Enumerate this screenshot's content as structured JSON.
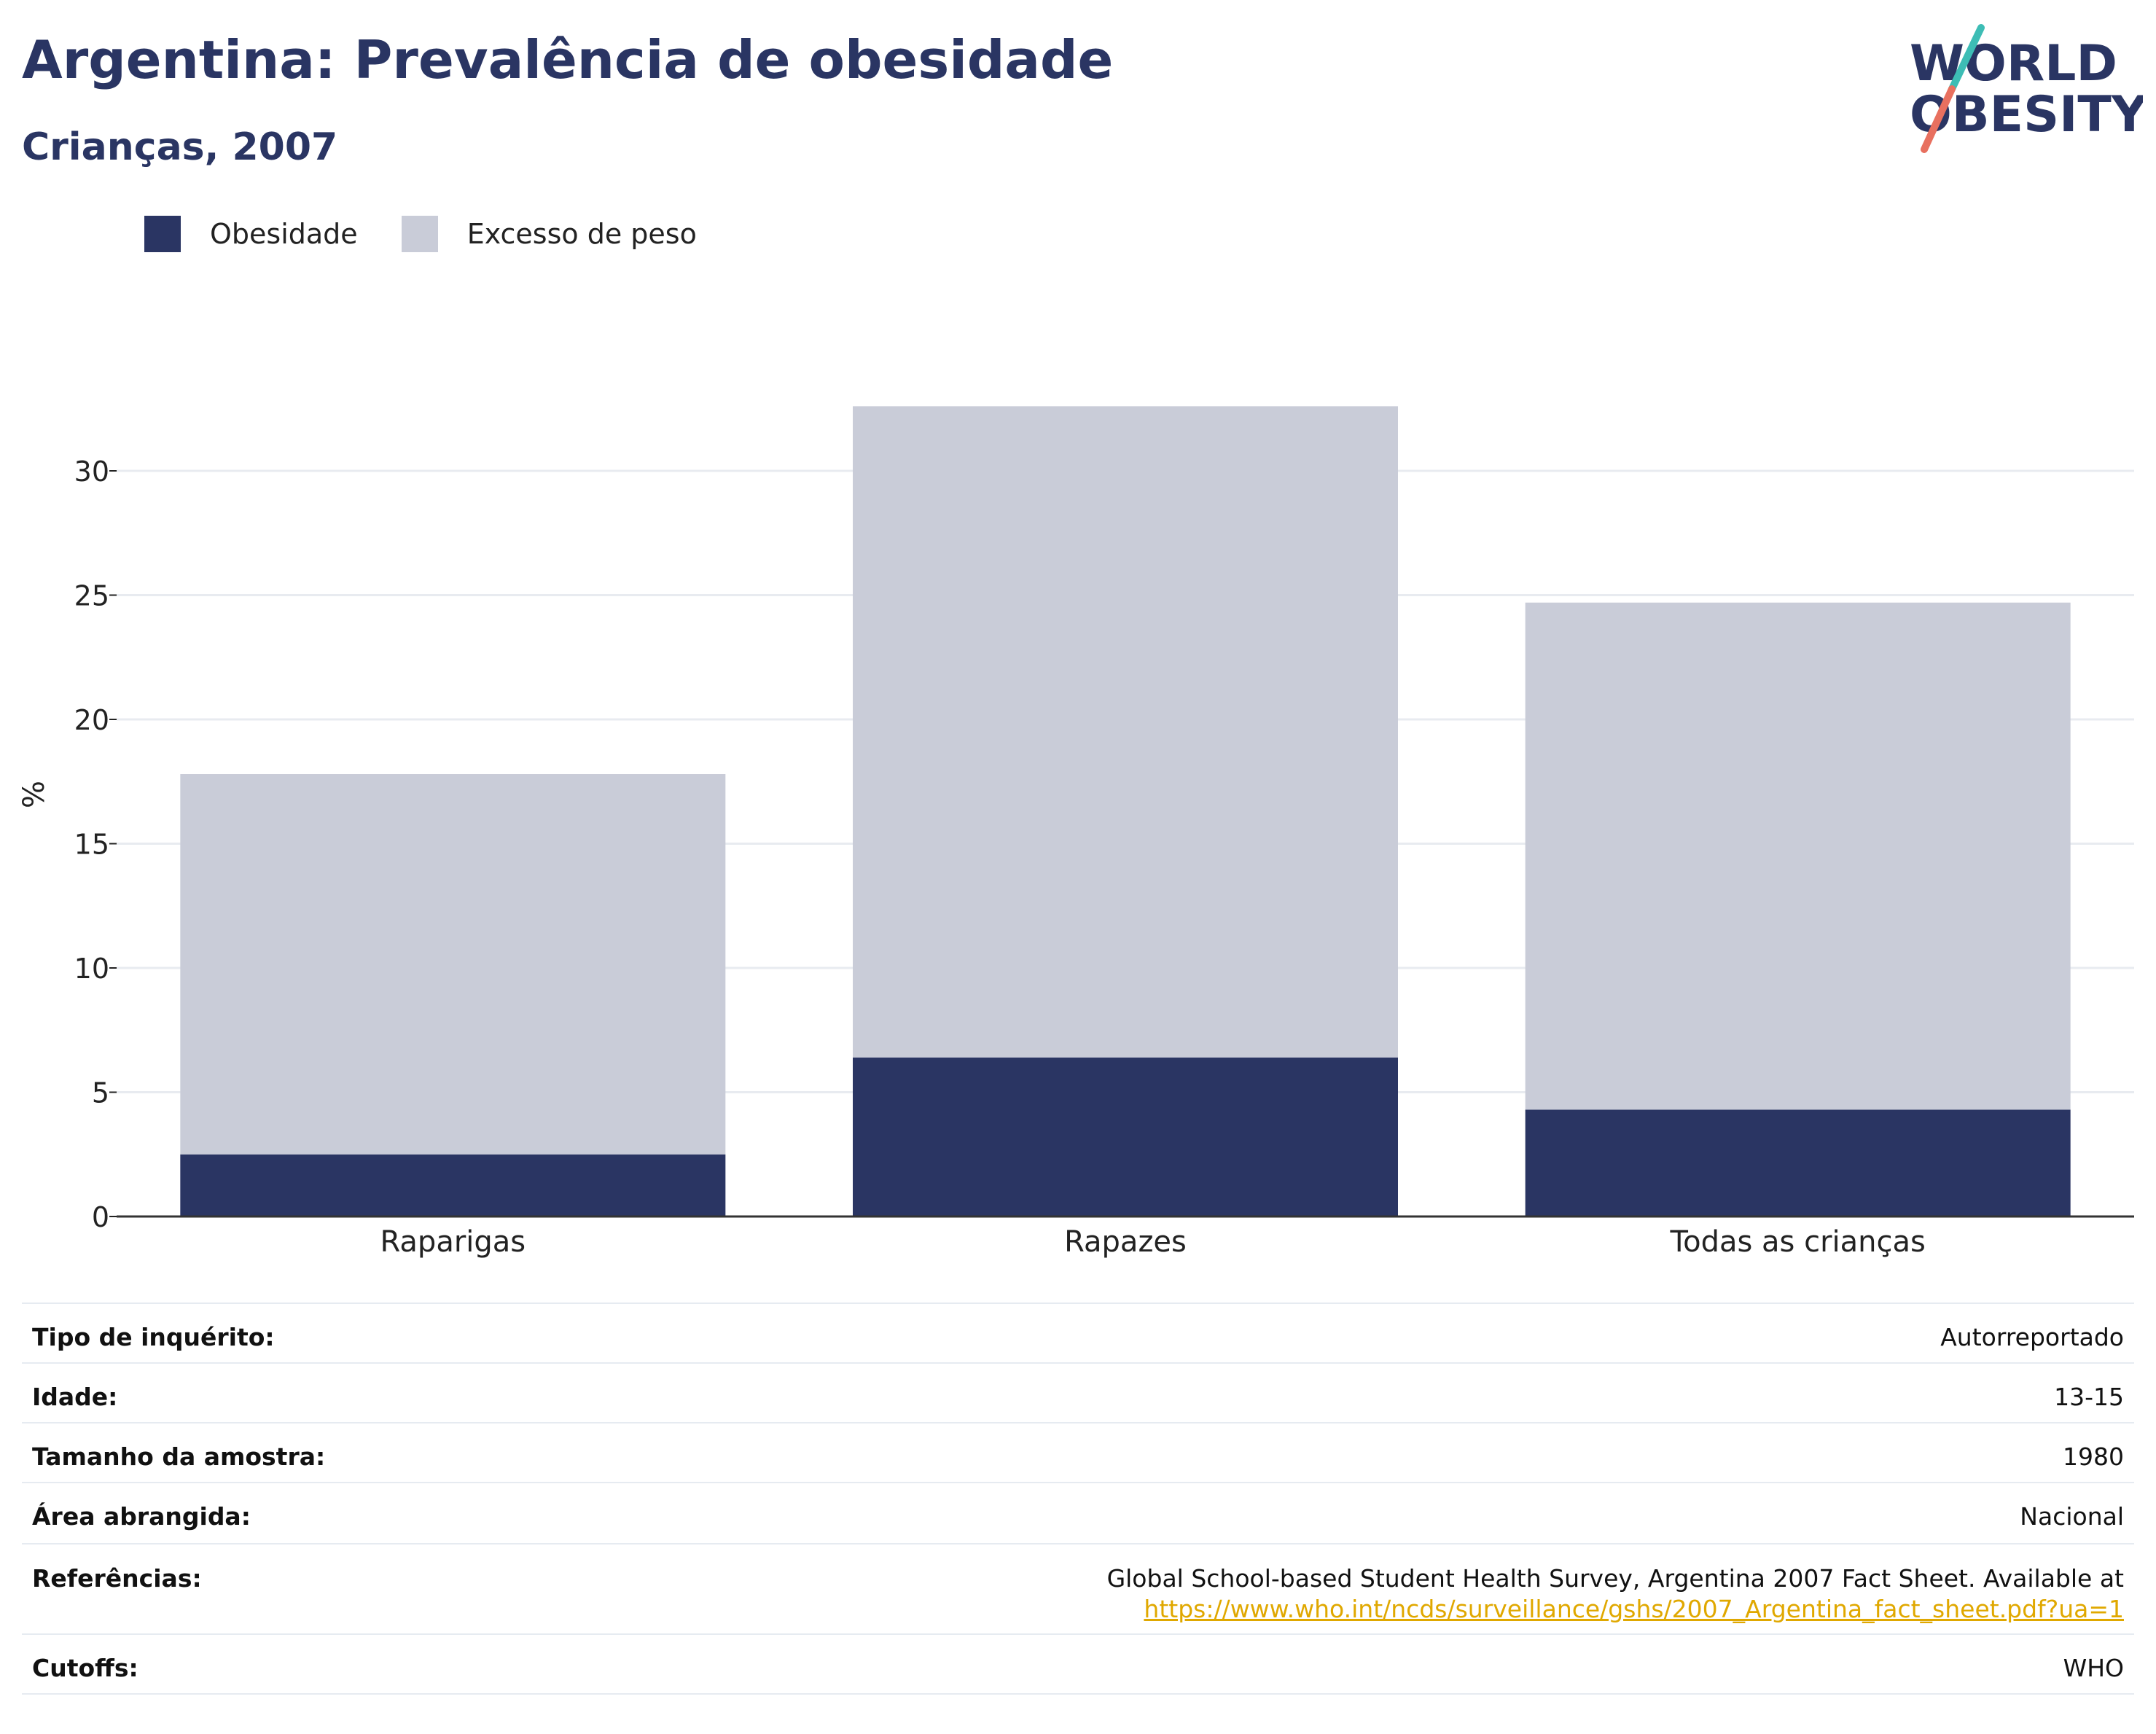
{
  "header": {
    "title": "Argentina: Prevalência de obesidade",
    "subtitle": "Crianças, 2007",
    "logo_line1": "WORLD",
    "logo_line2": "OBESITY"
  },
  "legend": {
    "obesity_label": "Obesidade",
    "overweight_label": "Excesso de peso"
  },
  "colors": {
    "obesity": "#2a3563",
    "overweight": "#c9ccd8",
    "title": "#2a3563",
    "link": "#e0a800",
    "logo_teal": "#3dbdb5",
    "logo_coral": "#e8705f"
  },
  "chart_data": {
    "type": "bar",
    "stacked": true,
    "categories": [
      "Raparigas",
      "Rapazes",
      "Todas as crianças"
    ],
    "series": [
      {
        "name": "Obesidade",
        "values": [
          2.5,
          6.4,
          4.3
        ]
      },
      {
        "name": "Excesso de peso",
        "values": [
          15.3,
          26.2,
          20.4
        ]
      }
    ],
    "totals": [
      17.8,
      32.6,
      24.7
    ],
    "ylabel": "%",
    "ylim": [
      0,
      35
    ],
    "yticks": [
      0,
      5,
      10,
      15,
      20,
      25,
      30
    ],
    "grid": true,
    "legend_position": "top-left"
  },
  "info": {
    "survey_type": {
      "label": "Tipo de inquérito:",
      "value": "Autorreportado"
    },
    "age": {
      "label": "Idade:",
      "value": "13-15"
    },
    "sample_size": {
      "label": "Tamanho da amostra:",
      "value": "1980"
    },
    "area": {
      "label": "Área abrangida:",
      "value": "Nacional"
    },
    "references": {
      "label": "Referências:",
      "text": "Global School-based Student Health Survey, Argentina 2007 Fact Sheet. Available at",
      "link": "https://www.who.int/ncds/surveillance/gshs/2007_Argentina_fact_sheet.pdf?ua=1"
    },
    "cutoffs": {
      "label": "Cutoffs:",
      "value": "WHO"
    }
  }
}
